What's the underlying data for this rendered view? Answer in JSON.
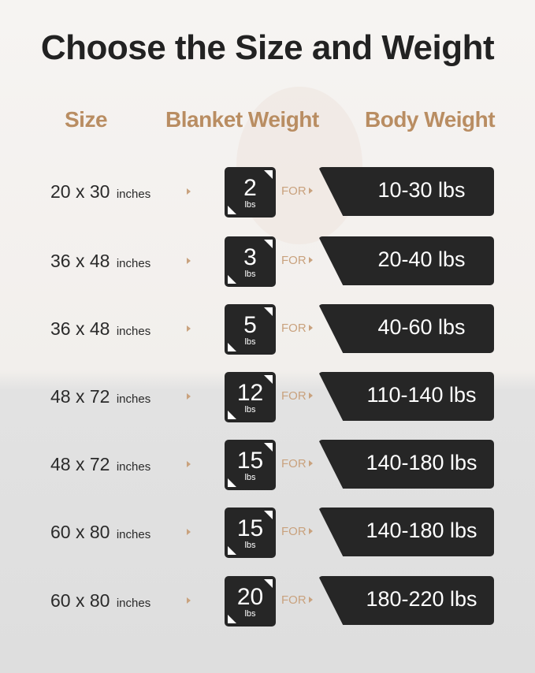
{
  "title": "Choose the Size and Weight",
  "headers": {
    "size": "Size",
    "blanket_weight": "Blanket Weight",
    "body_weight": "Body Weight"
  },
  "connector": "FOR",
  "size_unit": "inches",
  "weight_unit": "lbs",
  "colors": {
    "accent": "#b98d62",
    "dark": "#262626"
  },
  "rows": [
    {
      "size": "20 x 30",
      "blanket": "2",
      "body": "10-30 lbs"
    },
    {
      "size": "36 x 48",
      "blanket": "3",
      "body": "20-40 lbs"
    },
    {
      "size": "36 x 48",
      "blanket": "5",
      "body": "40-60 lbs"
    },
    {
      "size": "48 x 72",
      "blanket": "12",
      "body": "110-140 lbs"
    },
    {
      "size": "48 x 72",
      "blanket": "15",
      "body": "140-180 lbs"
    },
    {
      "size": "60 x 80",
      "blanket": "15",
      "body": "140-180 lbs"
    },
    {
      "size": "60 x 80",
      "blanket": "20",
      "body": "180-220 lbs"
    }
  ]
}
